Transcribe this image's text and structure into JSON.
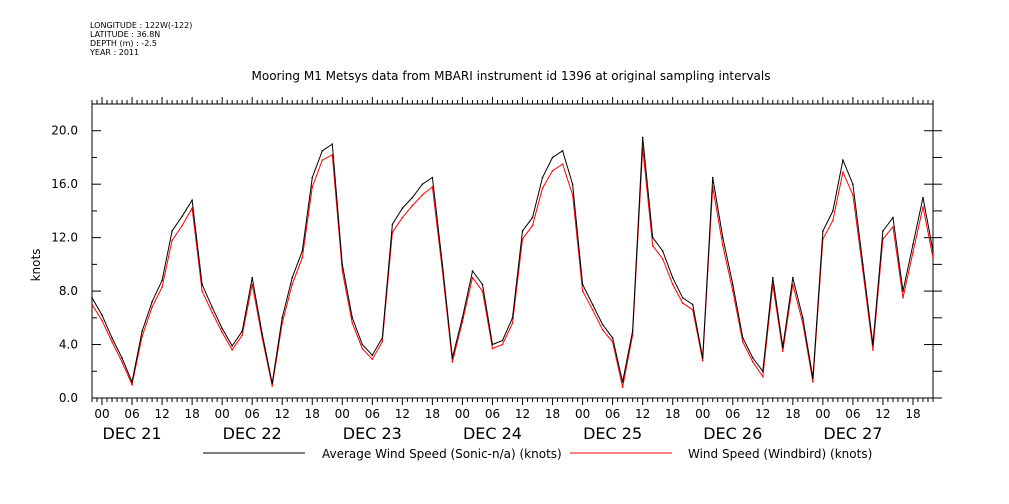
{
  "metadata": {
    "longitude": "LONGITUDE : 122W(-122)",
    "latitude": "LATITUDE : 36.8N",
    "depth": "DEPTH (m) : -2.5",
    "year": "YEAR : 2011"
  },
  "chart_data": {
    "type": "line",
    "title": "Mooring M1 Metsys data from MBARI instrument id 1396 at original sampling intervals",
    "ylabel": "knots",
    "xlabel": "",
    "ylim": [
      0,
      22
    ],
    "yticks": [
      0,
      4,
      8,
      12,
      16,
      20
    ],
    "ytick_labels": [
      "0.0",
      "4.0",
      "8.0",
      "12.0",
      "16.0",
      "20.0"
    ],
    "xlim_hours": [
      -2,
      166
    ],
    "hour_ticks": [
      "00",
      "06",
      "12",
      "18"
    ],
    "days": [
      "DEC 21",
      "DEC 22",
      "DEC 23",
      "DEC 24",
      "DEC 25",
      "DEC 26",
      "DEC 27"
    ],
    "grid": false,
    "legend_position": "bottom",
    "series": [
      {
        "name": "Average Wind Speed (Sonic-n/a) (knots)",
        "color": "#000000",
        "x_hours": [
          -2,
          0,
          2,
          4,
          6,
          8,
          10,
          12,
          14,
          16,
          18,
          20,
          22,
          24,
          26,
          28,
          30,
          32,
          34,
          36,
          38,
          40,
          42,
          44,
          46,
          48,
          50,
          52,
          54,
          56,
          58,
          60,
          62,
          64,
          66,
          68,
          70,
          72,
          74,
          76,
          78,
          80,
          82,
          84,
          86,
          88,
          90,
          92,
          94,
          96,
          98,
          100,
          102,
          104,
          106,
          108,
          110,
          112,
          114,
          116,
          118,
          120,
          122,
          124,
          126,
          128,
          130,
          132,
          134,
          136,
          138,
          140,
          142,
          144,
          146,
          148,
          150,
          152,
          154,
          156,
          158,
          160,
          162,
          164,
          166
        ],
        "values": [
          7.5,
          6.2,
          4.5,
          3.0,
          1.2,
          5.0,
          7.2,
          8.8,
          12.5,
          13.6,
          14.8,
          8.5,
          6.8,
          5.2,
          3.9,
          5.0,
          9.0,
          4.8,
          1.1,
          6.0,
          9.0,
          11.0,
          16.5,
          18.5,
          19.0,
          10.0,
          6.0,
          4.0,
          3.2,
          4.5,
          13.0,
          14.2,
          15.0,
          16.0,
          16.5,
          10.0,
          3.0,
          6.0,
          9.5,
          8.5,
          4.0,
          4.3,
          6.0,
          12.5,
          13.5,
          16.5,
          18.0,
          18.5,
          16.0,
          8.5,
          7.0,
          5.5,
          4.5,
          1.2,
          5.0,
          19.5,
          12.0,
          11.0,
          9.0,
          7.5,
          7.0,
          3.0,
          16.5,
          12.0,
          8.5,
          4.5,
          3.0,
          2.0,
          9.0,
          3.8,
          9.0,
          6.0,
          1.5,
          12.5,
          14.0,
          17.8,
          16.0,
          10.0,
          4.0,
          12.5,
          13.5,
          8.0,
          11.5,
          15.0,
          11.0
        ]
      },
      {
        "name": "Wind Speed (Windbird) (knots)",
        "color": "#ff0000",
        "x_hours": [
          -2,
          0,
          2,
          4,
          6,
          8,
          10,
          12,
          14,
          16,
          18,
          20,
          22,
          24,
          26,
          28,
          30,
          32,
          34,
          36,
          38,
          40,
          42,
          44,
          46,
          48,
          50,
          52,
          54,
          56,
          58,
          60,
          62,
          64,
          66,
          68,
          70,
          72,
          74,
          76,
          78,
          80,
          82,
          84,
          86,
          88,
          90,
          92,
          94,
          96,
          98,
          100,
          102,
          104,
          106,
          108,
          110,
          112,
          114,
          116,
          118,
          120,
          122,
          124,
          126,
          128,
          130,
          132,
          134,
          136,
          138,
          140,
          142,
          144,
          146,
          148,
          150,
          152,
          154,
          156,
          158,
          160,
          162,
          164,
          166
        ],
        "values": [
          7.0,
          5.8,
          4.2,
          2.7,
          1.0,
          4.6,
          6.8,
          8.3,
          11.8,
          12.9,
          14.2,
          8.0,
          6.4,
          4.9,
          3.6,
          4.7,
          8.5,
          4.5,
          0.9,
          5.6,
          8.5,
          10.5,
          15.8,
          17.8,
          18.2,
          9.5,
          5.6,
          3.7,
          2.9,
          4.2,
          12.4,
          13.5,
          14.4,
          15.2,
          15.8,
          9.5,
          2.7,
          5.7,
          9.0,
          8.0,
          3.7,
          4.0,
          5.6,
          11.9,
          12.9,
          15.7,
          17.0,
          17.5,
          15.2,
          8.0,
          6.6,
          5.1,
          4.2,
          0.8,
          4.7,
          18.7,
          11.4,
          10.4,
          8.5,
          7.1,
          6.6,
          2.8,
          15.8,
          11.4,
          8.0,
          4.2,
          2.7,
          1.6,
          8.5,
          3.5,
          8.5,
          5.6,
          1.2,
          11.9,
          13.3,
          16.9,
          15.2,
          9.5,
          3.6,
          11.9,
          12.8,
          7.5,
          10.9,
          14.3,
          10.5
        ]
      }
    ]
  }
}
